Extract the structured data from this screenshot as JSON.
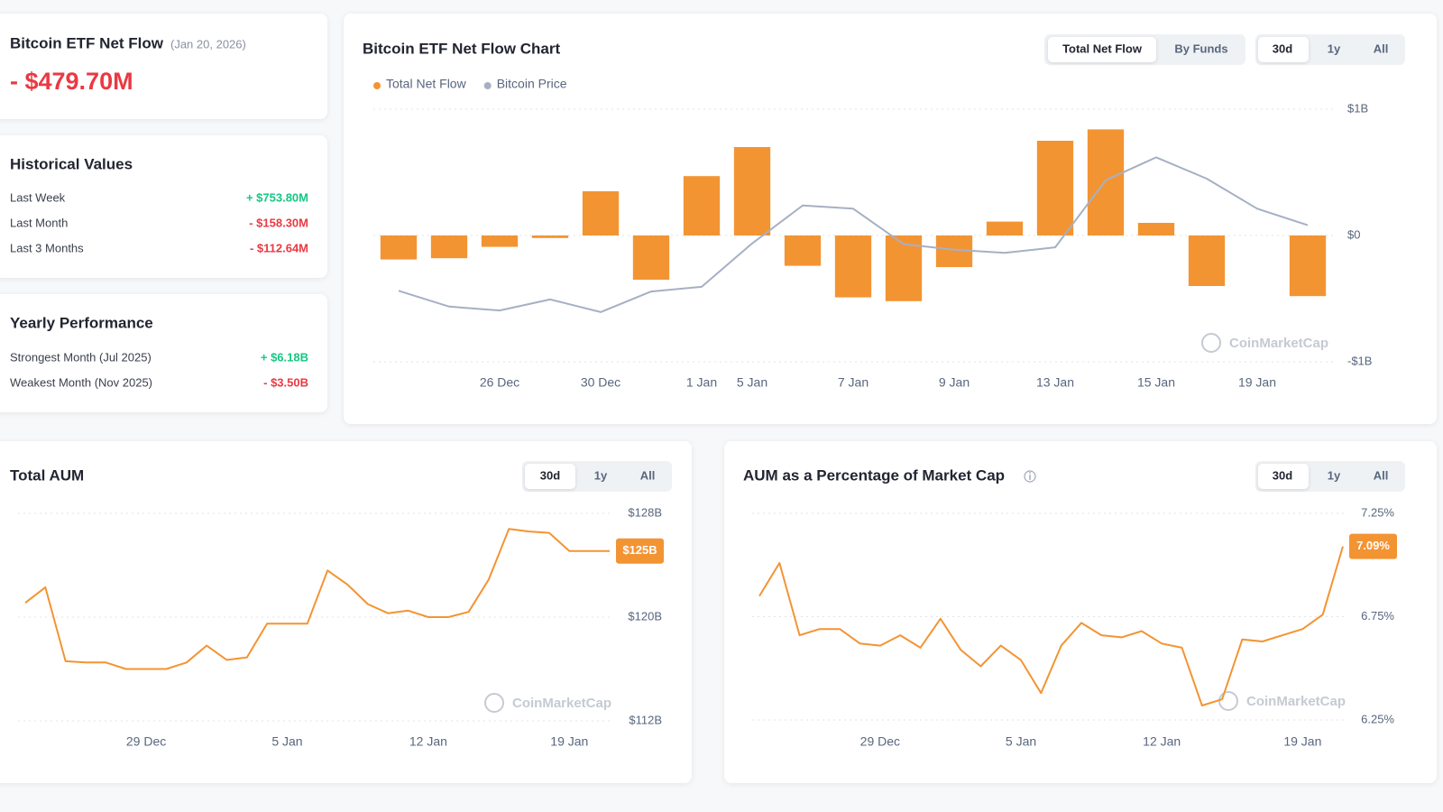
{
  "net_flow_card": {
    "title": "Bitcoin ETF Net Flow",
    "date": "(Jan 20, 2026)",
    "value": "- $479.70M"
  },
  "historical_values": {
    "title": "Historical Values",
    "rows": [
      [
        "Last Week",
        "+ $753.80M"
      ],
      [
        "Last Month",
        "- $158.30M"
      ],
      [
        "Last 3 Months",
        "- $112.64M"
      ]
    ]
  },
  "yearly_performance": {
    "title": "Yearly Performance",
    "rows": [
      [
        "Strongest Month (Jul 2025)",
        "+ $6.18B"
      ],
      [
        "Weakest Month (Nov 2025)",
        "- $3.50B"
      ]
    ]
  },
  "chart_data": [
    {
      "type": "bar",
      "title": "Bitcoin ETF Net Flow Chart",
      "tabs": [
        "Total Net Flow",
        "By Funds"
      ],
      "ranges": [
        "30d",
        "1y",
        "All"
      ],
      "watermark": "CoinMarketCap",
      "categories": [
        null,
        null,
        "26 Dec",
        null,
        "30 Dec",
        null,
        "1 Jan",
        "5 Jan",
        null,
        "7 Jan",
        null,
        "9 Jan",
        null,
        "13 Jan",
        null,
        "15 Jan",
        null,
        "19 Jan",
        null
      ],
      "series": [
        {
          "name": "Total Net Flow",
          "color": "#f39433",
          "values": [
            -0.19,
            -0.18,
            -0.09,
            -0.02,
            0.35,
            -0.35,
            0.47,
            0.7,
            -0.24,
            -0.49,
            -0.52,
            -0.25,
            0.11,
            0.75,
            0.84,
            0.1,
            -0.4,
            null,
            -0.48
          ]
        },
        {
          "name": "Bitcoin Price",
          "color": "#a6b0c3",
          "type": "line",
          "axis": "y2",
          "values": [
            86500,
            85500,
            85250,
            85950,
            85150,
            86450,
            86750,
            89500,
            91900,
            91700,
            89450,
            89100,
            88900,
            89250,
            93500,
            94950,
            93600,
            91700,
            90650
          ]
        }
      ],
      "ylim": [
        -1,
        1
      ],
      "yticks": [
        {
          "value": 1,
          "label": "$1B"
        },
        {
          "value": 0,
          "label": "$0"
        },
        {
          "value": -1,
          "label": "-$1B"
        }
      ],
      "y2lim": [
        82000,
        98000
      ],
      "grid": true,
      "legend": "top-left"
    },
    {
      "type": "line",
      "title": "Total AUM",
      "ranges": [
        "30d",
        "1y",
        "All"
      ],
      "watermark": "CoinMarketCap",
      "categories": [
        null,
        null,
        null,
        null,
        null,
        null,
        "29 Dec",
        null,
        null,
        null,
        null,
        null,
        null,
        "5 Jan",
        null,
        null,
        null,
        null,
        null,
        null,
        "12 Jan",
        null,
        null,
        null,
        null,
        null,
        null,
        "19 Jan",
        null,
        null
      ],
      "values": [
        121.1,
        122.3,
        116.6,
        116.5,
        116.5,
        116.0,
        116.0,
        116.0,
        116.5,
        117.8,
        116.7,
        116.9,
        119.5,
        119.5,
        119.5,
        123.6,
        122.5,
        121.0,
        120.3,
        120.5,
        120.0,
        120.0,
        120.4,
        122.9,
        126.8,
        126.6,
        126.5,
        125.1,
        125.1,
        125.1
      ],
      "value_labels": [
        null,
        null,
        null,
        null,
        null,
        null,
        null,
        null,
        null,
        null,
        null,
        null,
        null,
        null,
        null,
        null,
        null,
        null,
        null,
        null,
        null,
        null,
        null,
        null,
        null,
        null,
        null,
        null,
        null,
        "$125B"
      ],
      "color": "#f39433",
      "ylim": [
        112,
        128
      ],
      "yticks": [
        {
          "value": 128,
          "label": "$128B"
        },
        {
          "value": 120,
          "label": "$120B"
        },
        {
          "value": 112,
          "label": "$112B"
        }
      ],
      "grid": true
    },
    {
      "type": "line",
      "title": "AUM as a Percentage of Market Cap",
      "ranges": [
        "30d",
        "1y",
        "All"
      ],
      "watermark": "CoinMarketCap",
      "categories": [
        null,
        null,
        null,
        null,
        null,
        null,
        "29 Dec",
        null,
        null,
        null,
        null,
        null,
        null,
        "5 Jan",
        null,
        null,
        null,
        null,
        null,
        null,
        "12 Jan",
        null,
        null,
        null,
        null,
        null,
        null,
        "19 Jan",
        null,
        null
      ],
      "values": [
        6.85,
        7.01,
        6.66,
        6.69,
        6.69,
        6.62,
        6.61,
        6.66,
        6.6,
        6.74,
        6.59,
        6.51,
        6.61,
        6.54,
        6.38,
        6.61,
        6.72,
        6.66,
        6.65,
        6.68,
        6.62,
        6.6,
        6.32,
        6.35,
        6.64,
        6.63,
        6.66,
        6.69,
        6.76,
        7.09
      ],
      "value_labels": [
        null,
        null,
        null,
        null,
        null,
        null,
        null,
        null,
        null,
        null,
        null,
        null,
        null,
        null,
        null,
        null,
        null,
        null,
        null,
        null,
        null,
        null,
        null,
        null,
        null,
        null,
        null,
        null,
        null,
        "7.09%"
      ],
      "color": "#f39433",
      "ylim": [
        6.25,
        7.25
      ],
      "yticks": [
        {
          "value": 7.25,
          "label": "7.25%"
        },
        {
          "value": 6.75,
          "label": "6.75%"
        },
        {
          "value": 6.25,
          "label": "6.25%"
        }
      ],
      "grid": true
    }
  ]
}
